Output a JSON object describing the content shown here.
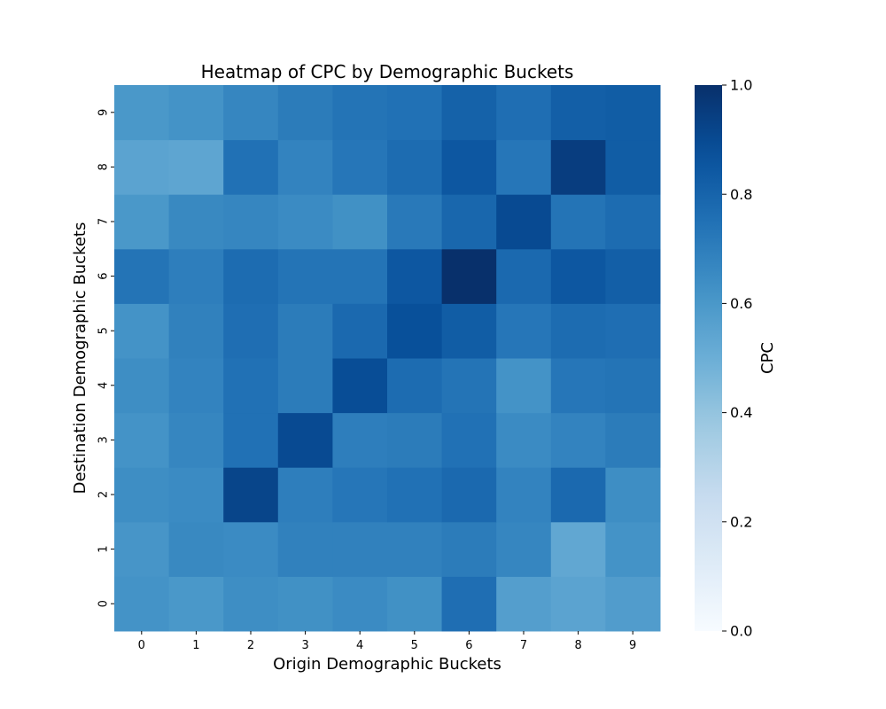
{
  "chart_data": {
    "type": "heatmap",
    "title": "Heatmap of CPC by Demographic Buckets",
    "xlabel": "Origin Demographic Buckets",
    "ylabel": "Destination Demographic Buckets",
    "x_categories": [
      "0",
      "1",
      "2",
      "3",
      "4",
      "5",
      "6",
      "7",
      "8",
      "9"
    ],
    "y_categories": [
      "0",
      "1",
      "2",
      "3",
      "4",
      "5",
      "6",
      "7",
      "8",
      "9"
    ],
    "colorbar": {
      "label": "CPC",
      "range": [
        0.0,
        1.0
      ],
      "ticks": [
        "0.0",
        "0.2",
        "0.4",
        "0.6",
        "0.8",
        "1.0"
      ],
      "colormap": "Blues"
    },
    "values": [
      [
        0.62,
        0.6,
        0.64,
        0.63,
        0.65,
        0.63,
        0.76,
        0.57,
        0.55,
        0.58
      ],
      [
        0.61,
        0.66,
        0.65,
        0.69,
        0.69,
        0.69,
        0.71,
        0.67,
        0.53,
        0.62
      ],
      [
        0.64,
        0.65,
        0.92,
        0.7,
        0.73,
        0.75,
        0.78,
        0.68,
        0.78,
        0.64
      ],
      [
        0.62,
        0.67,
        0.75,
        0.9,
        0.7,
        0.71,
        0.75,
        0.65,
        0.68,
        0.71
      ],
      [
        0.64,
        0.68,
        0.75,
        0.71,
        0.89,
        0.77,
        0.74,
        0.62,
        0.73,
        0.74
      ],
      [
        0.62,
        0.69,
        0.76,
        0.71,
        0.78,
        0.88,
        0.83,
        0.73,
        0.77,
        0.76
      ],
      [
        0.74,
        0.7,
        0.77,
        0.74,
        0.74,
        0.85,
        1.0,
        0.78,
        0.85,
        0.82
      ],
      [
        0.6,
        0.66,
        0.67,
        0.65,
        0.63,
        0.72,
        0.79,
        0.9,
        0.74,
        0.77
      ],
      [
        0.55,
        0.54,
        0.75,
        0.68,
        0.73,
        0.77,
        0.85,
        0.73,
        0.95,
        0.83
      ],
      [
        0.6,
        0.62,
        0.67,
        0.71,
        0.74,
        0.75,
        0.81,
        0.76,
        0.82,
        0.83
      ]
    ]
  }
}
